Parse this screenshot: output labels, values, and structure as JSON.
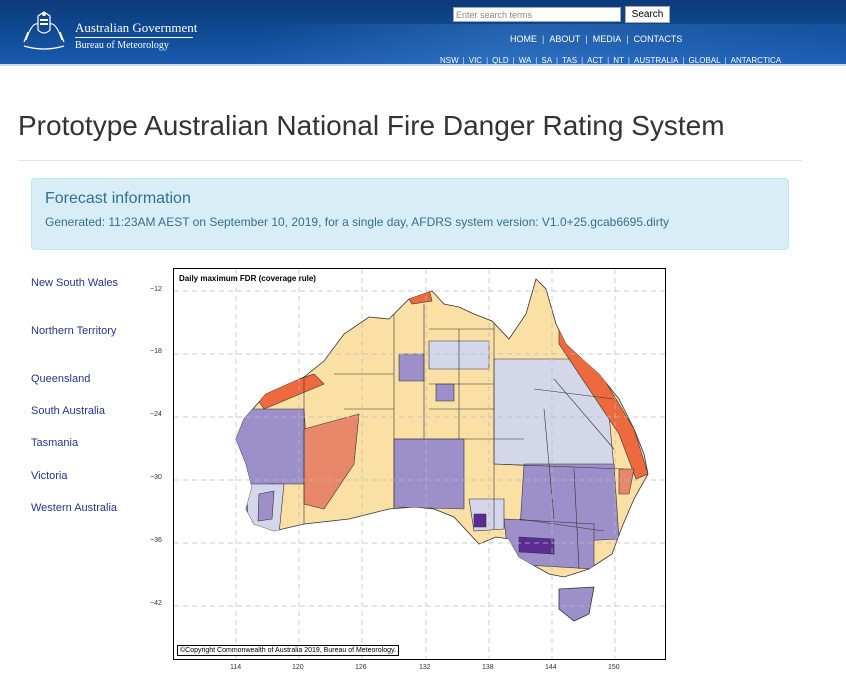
{
  "header": {
    "gov_name": "Australian Government",
    "agency": "Bureau of Meteorology",
    "search_placeholder": "Enter search terms",
    "search_button": "Search",
    "top_nav": [
      "HOME",
      "ABOUT",
      "MEDIA",
      "CONTACTS"
    ],
    "state_nav": [
      "NSW",
      "VIC",
      "QLD",
      "WA",
      "SA",
      "TAS",
      "ACT",
      "NT",
      "AUSTRALIA",
      "GLOBAL",
      "ANTARCTICA"
    ]
  },
  "page": {
    "title": "Prototype Australian National Fire Danger Rating System"
  },
  "forecast": {
    "heading": "Forecast information",
    "generated": "Generated: 11:23AM AEST on September 10, 2019, for a single day, AFDRS system version: V1.0+25.gcab6695.dirty"
  },
  "sidebar": {
    "links": [
      "New South Wales",
      "Northern Territory",
      "Queensland",
      "South Australia",
      "Tasmania",
      "Victoria",
      "Western Australia"
    ]
  },
  "map": {
    "title": "Daily maximum FDR (coverage rule)",
    "copyright": "©Copyright Commonwealth of Australia 2019, Bureau of Meteorology.",
    "y_ticks": [
      "−12",
      "−18",
      "−24",
      "−30",
      "−36",
      "−42"
    ],
    "x_ticks": [
      "114",
      "120",
      "126",
      "132",
      "138",
      "144",
      "150"
    ],
    "colors": {
      "low_moderate": "#fbe0a6",
      "high": "#e8876a",
      "very_high": "#ee6a3e",
      "light_lavender": "#d4d6ea",
      "medium_purple": "#9d8fca",
      "dark_purple": "#5a2c94"
    }
  }
}
